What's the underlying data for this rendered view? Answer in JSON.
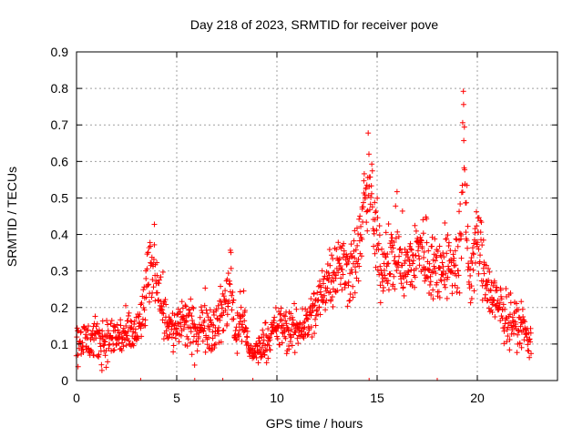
{
  "chart_data": {
    "type": "scatter",
    "title": "Day 218 of 2023, SRMTID for receiver pove",
    "xlabel": "GPS time / hours",
    "ylabel": "SRMTID / TECUs",
    "xlim": [
      0,
      24
    ],
    "ylim": [
      0,
      0.9
    ],
    "x_ticks": [
      "0",
      "5",
      "10",
      "15",
      "20"
    ],
    "y_ticks": [
      "0",
      "0.1",
      "0.2",
      "0.3",
      "0.4",
      "0.5",
      "0.6",
      "0.7",
      "0.8",
      "0.9"
    ],
    "grid": true,
    "marker": "plus",
    "color": "#ff0000",
    "envelope_points": [
      [
        0,
        0.1,
        0.04
      ],
      [
        0.5,
        0.11,
        0.05
      ],
      [
        1,
        0.11,
        0.05
      ],
      [
        1.5,
        0.11,
        0.05
      ],
      [
        2,
        0.12,
        0.05
      ],
      [
        2.5,
        0.12,
        0.05
      ],
      [
        3,
        0.13,
        0.05
      ],
      [
        3.3,
        0.18,
        0.07
      ],
      [
        3.6,
        0.28,
        0.08
      ],
      [
        3.9,
        0.33,
        0.08
      ],
      [
        4.1,
        0.26,
        0.07
      ],
      [
        4.4,
        0.18,
        0.06
      ],
      [
        4.8,
        0.13,
        0.05
      ],
      [
        5.2,
        0.16,
        0.06
      ],
      [
        5.6,
        0.15,
        0.06
      ],
      [
        6,
        0.12,
        0.05
      ],
      [
        6.4,
        0.17,
        0.06
      ],
      [
        6.8,
        0.14,
        0.06
      ],
      [
        7.2,
        0.17,
        0.06
      ],
      [
        7.5,
        0.22,
        0.08
      ],
      [
        7.7,
        0.3,
        0.08
      ],
      [
        7.9,
        0.13,
        0.05
      ],
      [
        8.3,
        0.18,
        0.06
      ],
      [
        8.6,
        0.08,
        0.03
      ],
      [
        9,
        0.08,
        0.03
      ],
      [
        9.4,
        0.11,
        0.04
      ],
      [
        9.8,
        0.13,
        0.05
      ],
      [
        10.2,
        0.15,
        0.05
      ],
      [
        10.6,
        0.13,
        0.05
      ],
      [
        11,
        0.14,
        0.05
      ],
      [
        11.5,
        0.16,
        0.05
      ],
      [
        12,
        0.2,
        0.06
      ],
      [
        12.5,
        0.28,
        0.07
      ],
      [
        13,
        0.32,
        0.08
      ],
      [
        13.5,
        0.3,
        0.08
      ],
      [
        14,
        0.33,
        0.08
      ],
      [
        14.3,
        0.45,
        0.1
      ],
      [
        14.6,
        0.55,
        0.12
      ],
      [
        14.9,
        0.4,
        0.1
      ],
      [
        15.2,
        0.32,
        0.08
      ],
      [
        15.6,
        0.33,
        0.08
      ],
      [
        16,
        0.36,
        0.1
      ],
      [
        16.4,
        0.3,
        0.08
      ],
      [
        16.8,
        0.33,
        0.08
      ],
      [
        17.2,
        0.36,
        0.09
      ],
      [
        17.6,
        0.33,
        0.09
      ],
      [
        18,
        0.3,
        0.08
      ],
      [
        18.4,
        0.33,
        0.08
      ],
      [
        18.8,
        0.3,
        0.08
      ],
      [
        19.2,
        0.38,
        0.12
      ],
      [
        19.3,
        0.65,
        0.15
      ],
      [
        19.6,
        0.26,
        0.08
      ],
      [
        20,
        0.4,
        0.08
      ],
      [
        20.3,
        0.3,
        0.08
      ],
      [
        20.7,
        0.23,
        0.07
      ],
      [
        21,
        0.2,
        0.06
      ],
      [
        21.4,
        0.18,
        0.06
      ],
      [
        21.8,
        0.16,
        0.05
      ],
      [
        22.2,
        0.15,
        0.05
      ],
      [
        22.7,
        0.1,
        0.04
      ]
    ],
    "zero_markers": [
      3.2,
      5.9,
      7.3,
      8.8,
      14.6,
      18.0
    ]
  }
}
